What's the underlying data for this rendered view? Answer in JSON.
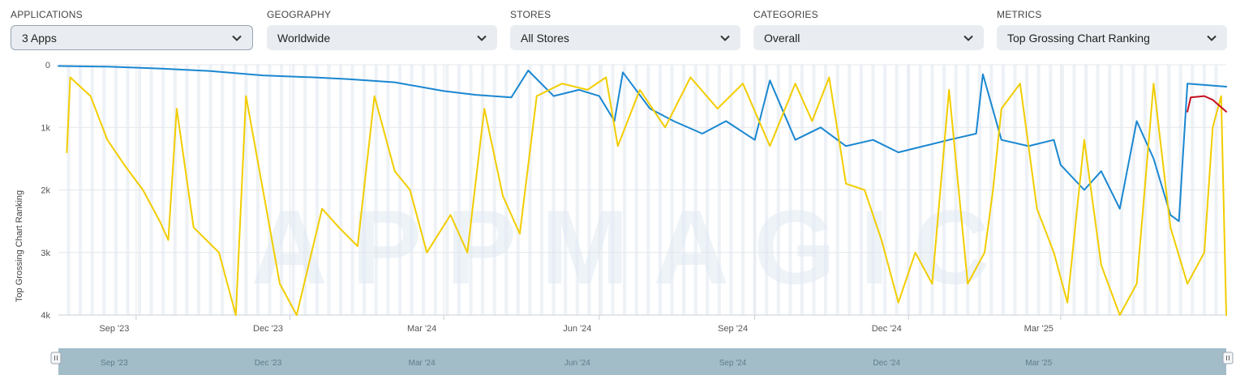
{
  "filters": [
    {
      "id": "applications",
      "label": "APPLICATIONS",
      "value": "3 Apps"
    },
    {
      "id": "geography",
      "label": "GEOGRAPHY",
      "value": "Worldwide"
    },
    {
      "id": "stores",
      "label": "STORES",
      "value": "All Stores"
    },
    {
      "id": "categories",
      "label": "CATEGORIES",
      "value": "Overall"
    },
    {
      "id": "metrics",
      "label": "METRICS",
      "value": "Top Grossing Chart Ranking"
    }
  ],
  "icons": {
    "dropdown": "chevron-down-icon",
    "navigator_handle": "drag-handle-icon"
  },
  "watermark": "APPMAGIC",
  "chart_data": {
    "type": "line",
    "ylabel": "Top Grossing Chart Ranking",
    "y_reversed": true,
    "ylim": [
      0,
      4000
    ],
    "yticks": [
      0,
      1000,
      2000,
      3000,
      4000
    ],
    "ytick_labels": [
      "0",
      "1k",
      "2k",
      "3k",
      "4k"
    ],
    "xlim": [
      "2023-07-17",
      "2025-06-07"
    ],
    "xticks": [
      {
        "date": "2023-09-01",
        "label": "Sep '23"
      },
      {
        "date": "2023-12-01",
        "label": "Dec '23"
      },
      {
        "date": "2024-03-01",
        "label": "Mar '24"
      },
      {
        "date": "2024-06-01",
        "label": "Jun '24"
      },
      {
        "date": "2024-09-01",
        "label": "Sep '24"
      },
      {
        "date": "2024-12-01",
        "label": "Dec '24"
      },
      {
        "date": "2025-03-01",
        "label": "Mar '25"
      }
    ],
    "weekend_shading": true,
    "navigator": true,
    "series": [
      {
        "color": "#1a87d1",
        "points": [
          [
            "2023-07-17",
            20
          ],
          [
            "2023-08-15",
            30
          ],
          [
            "2023-09-15",
            60
          ],
          [
            "2023-10-15",
            100
          ],
          [
            "2023-11-15",
            170
          ],
          [
            "2023-12-15",
            200
          ],
          [
            "2024-01-05",
            230
          ],
          [
            "2024-02-01",
            280
          ],
          [
            "2024-03-01",
            420
          ],
          [
            "2024-03-20",
            480
          ],
          [
            "2024-04-10",
            520
          ],
          [
            "2024-04-20",
            90
          ],
          [
            "2024-05-05",
            500
          ],
          [
            "2024-05-20",
            400
          ],
          [
            "2024-06-01",
            500
          ],
          [
            "2024-06-10",
            900
          ],
          [
            "2024-06-15",
            120
          ],
          [
            "2024-07-01",
            700
          ],
          [
            "2024-07-15",
            900
          ],
          [
            "2024-08-01",
            1100
          ],
          [
            "2024-08-15",
            900
          ],
          [
            "2024-09-01",
            1200
          ],
          [
            "2024-09-10",
            250
          ],
          [
            "2024-09-25",
            1200
          ],
          [
            "2024-10-10",
            1000
          ],
          [
            "2024-10-25",
            1300
          ],
          [
            "2024-11-10",
            1200
          ],
          [
            "2024-11-25",
            1400
          ],
          [
            "2024-12-10",
            1300
          ],
          [
            "2024-12-25",
            1200
          ],
          [
            "2025-01-10",
            1100
          ],
          [
            "2025-01-14",
            150
          ],
          [
            "2025-01-25",
            1200
          ],
          [
            "2025-02-10",
            1300
          ],
          [
            "2025-02-25",
            1200
          ],
          [
            "2025-03-01",
            1600
          ],
          [
            "2025-03-15",
            2000
          ],
          [
            "2025-03-25",
            1700
          ],
          [
            "2025-04-05",
            2300
          ],
          [
            "2025-04-15",
            900
          ],
          [
            "2025-04-25",
            1500
          ],
          [
            "2025-05-05",
            2400
          ],
          [
            "2025-05-10",
            2500
          ],
          [
            "2025-05-15",
            300
          ],
          [
            "2025-06-07",
            350
          ]
        ]
      },
      {
        "color": "#f2cd00",
        "points": [
          [
            "2023-07-22",
            1400
          ],
          [
            "2023-07-24",
            200
          ],
          [
            "2023-08-05",
            500
          ],
          [
            "2023-08-15",
            1200
          ],
          [
            "2023-08-25",
            1600
          ],
          [
            "2023-09-05",
            2000
          ],
          [
            "2023-09-15",
            2500
          ],
          [
            "2023-09-20",
            2800
          ],
          [
            "2023-09-25",
            700
          ],
          [
            "2023-10-05",
            2600
          ],
          [
            "2023-10-20",
            3000
          ],
          [
            "2023-10-30",
            4000
          ],
          [
            "2023-11-05",
            500
          ],
          [
            "2023-11-15",
            2000
          ],
          [
            "2023-11-25",
            3500
          ],
          [
            "2023-12-05",
            4000
          ],
          [
            "2023-12-20",
            2300
          ],
          [
            "2023-12-30",
            2600
          ],
          [
            "2024-01-10",
            2900
          ],
          [
            "2024-01-20",
            500
          ],
          [
            "2024-02-01",
            1700
          ],
          [
            "2024-02-10",
            2000
          ],
          [
            "2024-02-20",
            3000
          ],
          [
            "2024-03-05",
            2400
          ],
          [
            "2024-03-15",
            3000
          ],
          [
            "2024-03-25",
            700
          ],
          [
            "2024-04-05",
            2100
          ],
          [
            "2024-04-15",
            2700
          ],
          [
            "2024-04-25",
            500
          ],
          [
            "2024-05-10",
            300
          ],
          [
            "2024-05-25",
            400
          ],
          [
            "2024-06-05",
            200
          ],
          [
            "2024-06-12",
            1300
          ],
          [
            "2024-06-25",
            400
          ],
          [
            "2024-07-10",
            1000
          ],
          [
            "2024-07-25",
            200
          ],
          [
            "2024-08-10",
            700
          ],
          [
            "2024-08-25",
            300
          ],
          [
            "2024-09-10",
            1300
          ],
          [
            "2024-09-25",
            300
          ],
          [
            "2024-10-05",
            900
          ],
          [
            "2024-10-15",
            200
          ],
          [
            "2024-10-25",
            1900
          ],
          [
            "2024-11-05",
            2000
          ],
          [
            "2024-11-15",
            2800
          ],
          [
            "2024-11-25",
            3800
          ],
          [
            "2024-12-05",
            3000
          ],
          [
            "2024-12-15",
            3500
          ],
          [
            "2024-12-25",
            400
          ],
          [
            "2025-01-05",
            3500
          ],
          [
            "2025-01-15",
            3000
          ],
          [
            "2025-01-20",
            2000
          ],
          [
            "2025-01-25",
            700
          ],
          [
            "2025-02-05",
            300
          ],
          [
            "2025-02-15",
            2300
          ],
          [
            "2025-02-25",
            3000
          ],
          [
            "2025-03-05",
            3800
          ],
          [
            "2025-03-15",
            1200
          ],
          [
            "2025-03-25",
            3200
          ],
          [
            "2025-04-05",
            4000
          ],
          [
            "2025-04-15",
            3500
          ],
          [
            "2025-04-25",
            300
          ],
          [
            "2025-05-05",
            2600
          ],
          [
            "2025-05-15",
            3500
          ],
          [
            "2025-05-25",
            3000
          ],
          [
            "2025-05-30",
            1000
          ],
          [
            "2025-06-04",
            500
          ],
          [
            "2025-06-07",
            4000
          ]
        ]
      },
      {
        "color": "#c40f1e",
        "points": [
          [
            "2025-05-15",
            750
          ],
          [
            "2025-05-17",
            520
          ],
          [
            "2025-05-25",
            500
          ],
          [
            "2025-05-30",
            560
          ],
          [
            "2025-06-07",
            750
          ]
        ]
      }
    ]
  }
}
